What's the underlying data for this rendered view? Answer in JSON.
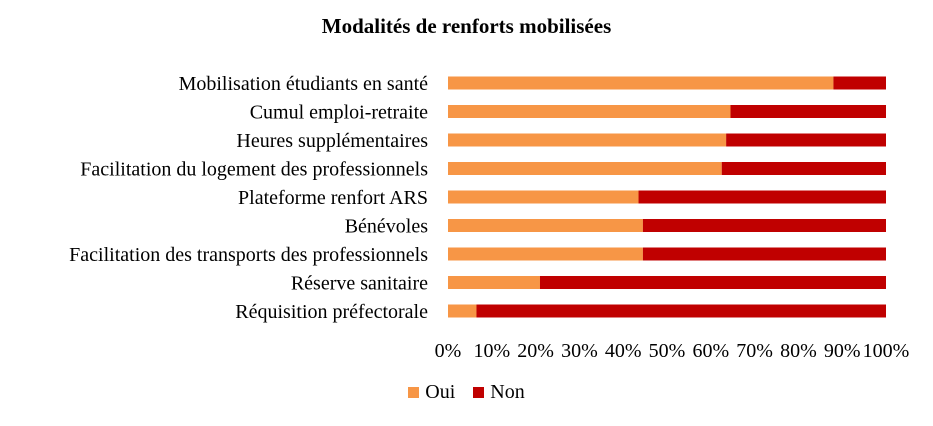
{
  "chart_data": {
    "type": "bar",
    "orientation": "horizontal",
    "stacked": true,
    "title": "Modalités de renforts mobilisées",
    "categories": [
      "Mobilisation étudiants en santé",
      "Cumul emploi-retraite",
      "Heures supplémentaires",
      "Facilitation du logement des professionnels",
      "Plateforme renfort ARS",
      "Bénévoles",
      "Facilitation des transports des professionnels",
      "Réserve sanitaire",
      "Réquisition préfectorale"
    ],
    "series": [
      {
        "name": "Oui",
        "color": "#F79646",
        "values": [
          88,
          64.5,
          63.5,
          62.5,
          43.5,
          44.5,
          44.5,
          21,
          6.5
        ]
      },
      {
        "name": "Non",
        "color": "#C00000",
        "values": [
          12,
          35.5,
          36.5,
          37.5,
          56.5,
          55.5,
          55.5,
          79,
          93.5
        ]
      }
    ],
    "xlim": [
      0,
      100
    ],
    "xticks": [
      "0%",
      "10%",
      "20%",
      "30%",
      "40%",
      "50%",
      "60%",
      "70%",
      "80%",
      "90%",
      "100%"
    ],
    "grid": false,
    "legend_position": "bottom"
  }
}
